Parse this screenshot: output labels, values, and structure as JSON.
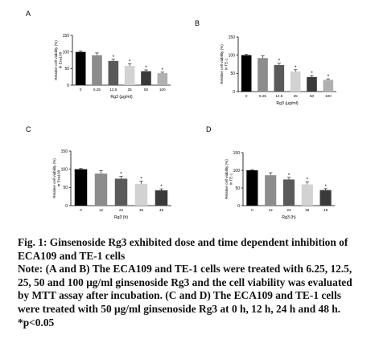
{
  "chart_data": [
    {
      "panel": "A",
      "type": "bar",
      "categories": [
        "0",
        "6.25",
        "12.5",
        "25",
        "50",
        "100"
      ],
      "values": [
        100,
        90,
        73,
        58,
        42,
        36
      ],
      "errors": [
        3,
        7,
        5,
        6,
        4,
        3
      ],
      "significant": [
        false,
        false,
        true,
        true,
        true,
        true
      ],
      "annotation": "*",
      "colors": [
        "#000000",
        "#8c8c8c",
        "#5a5a5a",
        "#d2d2d2",
        "#3a3a3a",
        "#b0b0b0"
      ],
      "xlabel": "Rg3 (μg/ml)",
      "ylabel": "Relative cell viability (%) in Eca109",
      "ylim": [
        0,
        150
      ],
      "yticks": [
        "0",
        "50",
        "100",
        "150"
      ]
    },
    {
      "panel": "B",
      "type": "bar",
      "categories": [
        "0",
        "6.25",
        "12.5",
        "25",
        "50",
        "100"
      ],
      "values": [
        100,
        92,
        73,
        55,
        40,
        32
      ],
      "errors": [
        2,
        6,
        5,
        5,
        4,
        3
      ],
      "significant": [
        false,
        false,
        true,
        true,
        true,
        true
      ],
      "annotation": "*",
      "colors": [
        "#000000",
        "#8c8c8c",
        "#5a5a5a",
        "#d2d2d2",
        "#3a3a3a",
        "#b0b0b0"
      ],
      "xlabel": "Rg3 (μg/ml)",
      "ylabel": "Relative cell viability (%) in TE-1",
      "ylim": [
        0,
        150
      ],
      "yticks": [
        "0",
        "50",
        "100",
        "150"
      ]
    },
    {
      "panel": "C",
      "type": "bar",
      "categories": [
        "0",
        "12",
        "24",
        "36",
        "48"
      ],
      "values": [
        100,
        88,
        74,
        60,
        42
      ],
      "errors": [
        2,
        8,
        6,
        7,
        4
      ],
      "significant": [
        false,
        false,
        true,
        true,
        true
      ],
      "annotation": "*",
      "colors": [
        "#000000",
        "#8c8c8c",
        "#5a5a5a",
        "#d2d2d2",
        "#3a3a3a"
      ],
      "xlabel": "Rg3 (h)",
      "ylabel": "Relative cell viability (%) in Eca109",
      "ylim": [
        0,
        150
      ],
      "yticks": [
        "0",
        "50",
        "100",
        "150"
      ]
    },
    {
      "panel": "D",
      "type": "bar",
      "categories": [
        "0",
        "12",
        "24",
        "36",
        "48"
      ],
      "values": [
        100,
        86,
        74,
        60,
        44
      ],
      "errors": [
        2,
        7,
        6,
        7,
        4
      ],
      "significant": [
        false,
        false,
        true,
        true,
        true
      ],
      "annotation": "*",
      "colors": [
        "#000000",
        "#8c8c8c",
        "#5a5a5a",
        "#d2d2d2",
        "#3a3a3a"
      ],
      "xlabel": "Rg3 (h)",
      "ylabel": "Relative cell viability (%) in TE-1",
      "ylim": [
        0,
        150
      ],
      "yticks": [
        "0",
        "50",
        "100",
        "150"
      ]
    }
  ],
  "caption": {
    "title": "Fig. 1: Ginsenoside Rg3 exhibited dose and time dependent inhibition of ECA109 and TE-1 cells",
    "note": "Note: (A and B) The ECA109 and TE-1 cells were treated with 6.25, 12.5, 25, 50 and 100 μg/ml ginsenoside Rg3 and the cell viability was evaluated by MTT assay after incubation. (C and D) The ECA109 and TE-1 cells were treated with 50 μg/ml ginsenoside Rg3 at 0 h, 12 h, 24 h and 48 h. *p<0.05"
  }
}
